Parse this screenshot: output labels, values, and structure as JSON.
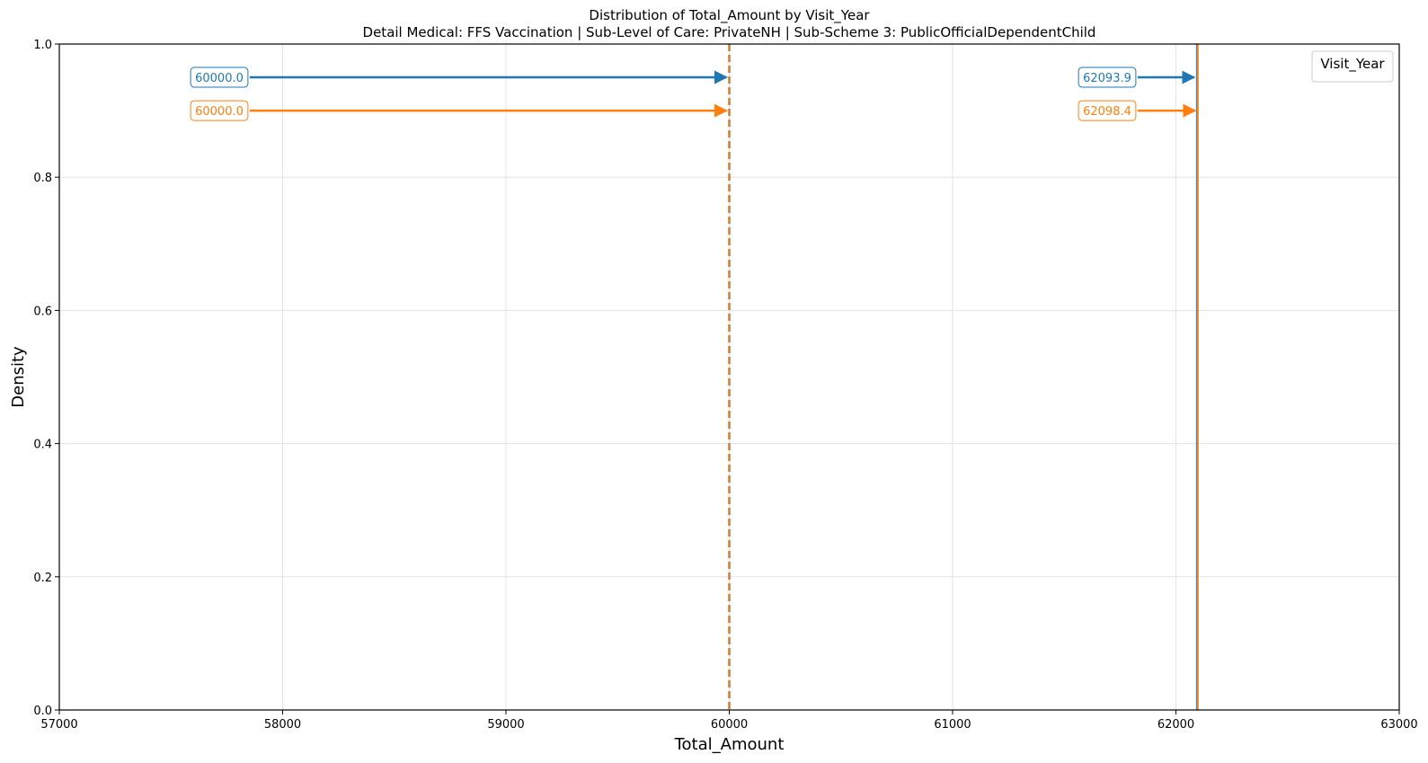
{
  "chart_data": {
    "type": "line",
    "title": "Distribution of Total_Amount by Visit_Year",
    "subtitle": "Detail Medical: FFS Vaccination | Sub-Level of Care: PrivateNH | Sub-Scheme 3: PublicOfficialDependentChild",
    "xlabel": "Total_Amount",
    "ylabel": "Density",
    "xlim": [
      57000,
      63000
    ],
    "ylim": [
      0,
      1.0
    ],
    "xticks": [
      57000,
      58000,
      59000,
      60000,
      61000,
      62000,
      63000
    ],
    "yticks": [
      0.0,
      0.2,
      0.4,
      0.6,
      0.8,
      1.0
    ],
    "grid": true,
    "legend": {
      "title": "Visit_Year",
      "placement": "top-right"
    },
    "series": [
      {
        "color": "#1f77b4",
        "median": 60000.0,
        "mean": 62093.9,
        "median_label": "60000.0",
        "mean_label": "62093.9",
        "annotation_y": 0.95
      },
      {
        "color": "#ff7f0e",
        "median": 60000.0,
        "mean": 62098.4,
        "median_label": "60000.0",
        "mean_label": "62098.4",
        "annotation_y": 0.9
      }
    ]
  }
}
